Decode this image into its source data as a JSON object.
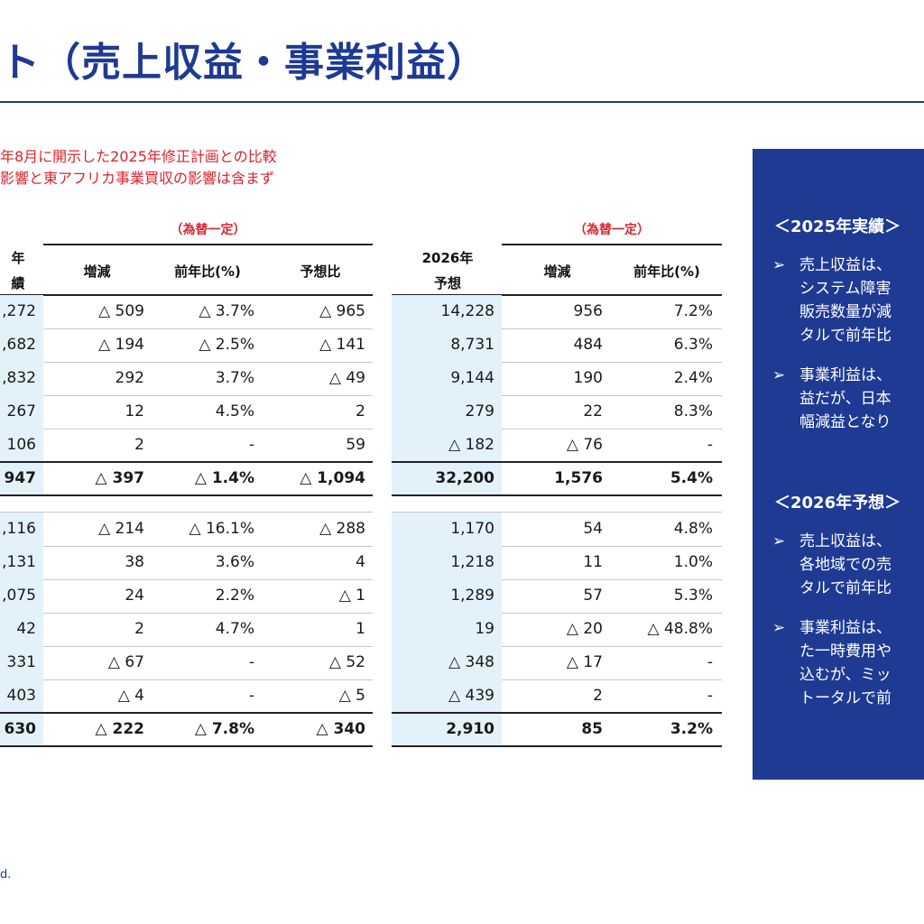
{
  "title": "ト（売上収益・事業利益）",
  "notes": [
    "年8月に開示した2025年修正計画との比較",
    "影響と東アフリカ事業買収の影響は含まず"
  ],
  "left_table": {
    "currency_note": "（為替一定）",
    "headers": {
      "col0_line1": "年",
      "col0_line2": "績",
      "col1": "増減",
      "col2": "前年比(%)",
      "col3": "予想比"
    }
  },
  "right_table": {
    "currency_note": "（為替一定）",
    "headers": {
      "col0_line1": "2026年",
      "col0_line2": "予想",
      "col1": "増減",
      "col2": "前年比(%)"
    }
  },
  "rows": [
    {
      "a": ",272",
      "b": "△ 509",
      "c": "△ 3.7%",
      "d": "△ 965",
      "e": "14,228",
      "f": "956",
      "g": "7.2%",
      "total": false
    },
    {
      "a": ",682",
      "b": "△ 194",
      "c": "△ 2.5%",
      "d": "△ 141",
      "e": "8,731",
      "f": "484",
      "g": "6.3%",
      "total": false
    },
    {
      "a": ",832",
      "b": "292",
      "c": "3.7%",
      "d": "△ 49",
      "e": "9,144",
      "f": "190",
      "g": "2.4%",
      "total": false
    },
    {
      "a": "267",
      "b": "12",
      "c": "4.5%",
      "d": "2",
      "e": "279",
      "f": "22",
      "g": "8.3%",
      "total": false
    },
    {
      "a": "106",
      "b": "2",
      "c": "-",
      "d": "59",
      "e": "△ 182",
      "f": "△ 76",
      "g": "-",
      "total": false
    },
    {
      "a": "947",
      "b": "△ 397",
      "c": "△ 1.4%",
      "d": "△ 1,094",
      "e": "32,200",
      "f": "1,576",
      "g": "5.4%",
      "total": true
    },
    {
      "a": ",116",
      "b": "△ 214",
      "c": "△ 16.1%",
      "d": "△ 288",
      "e": "1,170",
      "f": "54",
      "g": "4.8%",
      "total": false
    },
    {
      "a": ",131",
      "b": "38",
      "c": "3.6%",
      "d": "4",
      "e": "1,218",
      "f": "11",
      "g": "1.0%",
      "total": false
    },
    {
      "a": ",075",
      "b": "24",
      "c": "2.2%",
      "d": "△ 1",
      "e": "1,289",
      "f": "57",
      "g": "5.3%",
      "total": false
    },
    {
      "a": "42",
      "b": "2",
      "c": "4.7%",
      "d": "1",
      "e": "19",
      "f": "△ 20",
      "g": "△ 48.8%",
      "total": false
    },
    {
      "a": "331",
      "b": "△ 67",
      "c": "-",
      "d": "△ 52",
      "e": "△ 348",
      "f": "△ 17",
      "g": "-",
      "total": false
    },
    {
      "a": "403",
      "b": "△ 4",
      "c": "-",
      "d": "△ 5",
      "e": "△ 439",
      "f": "2",
      "g": "-",
      "total": false
    },
    {
      "a": "630",
      "b": "△ 222",
      "c": "△ 7.8%",
      "d": "△ 340",
      "e": "2,910",
      "f": "85",
      "g": "3.2%",
      "total": true
    }
  ],
  "panel": {
    "sections": [
      {
        "heading": "＜2025年実績＞",
        "bullets": [
          {
            "lines": [
              "売上収益は、",
              "システム障害",
              "販売数量が減",
              "タルで前年比"
            ]
          },
          {
            "lines": [
              "事業利益は、",
              "益だが、日本",
              "幅減益となり"
            ]
          }
        ]
      },
      {
        "heading": "＜2026年予想＞",
        "bullets": [
          {
            "lines": [
              "売上収益は、",
              "各地域での売",
              "タルで前年比"
            ]
          },
          {
            "lines": [
              "事業利益は、",
              "た一時費用や",
              "込むが、ミッ",
              "トータルで前"
            ]
          }
        ]
      }
    ],
    "bullet_symbol": "➢"
  },
  "footer": "d.",
  "colors": {
    "brand": "#1f3a93",
    "accent_red": "#d7262f",
    "highlight": "#e3f1fb"
  }
}
